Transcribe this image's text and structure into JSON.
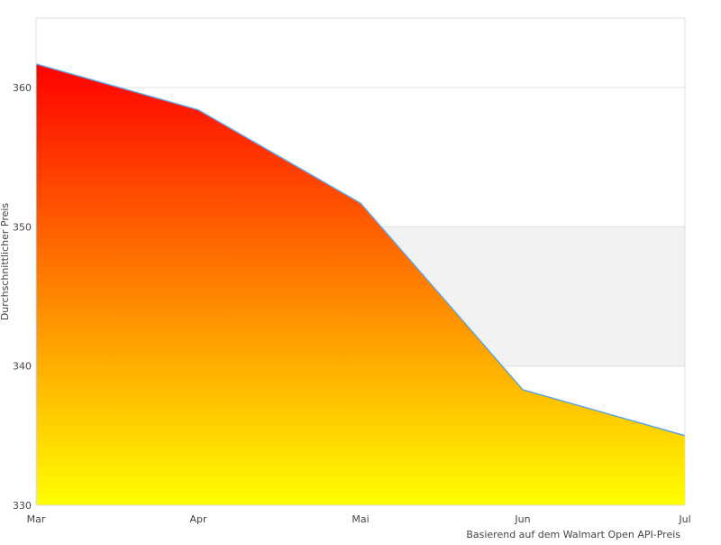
{
  "chart_data": {
    "type": "area",
    "title": "",
    "xlabel": "Basierend auf dem Walmart Open API-Preis",
    "ylabel": "Durchschnittlicher Preis",
    "categories": [
      "Mar",
      "Apr",
      "Mai",
      "Jun",
      "Jul"
    ],
    "values": [
      361.7,
      358.4,
      351.7,
      338.3,
      335.0
    ],
    "ylim": [
      330,
      365
    ],
    "yticks": [
      330,
      340,
      350,
      360
    ],
    "grid": true,
    "legend": "none",
    "colors": {
      "gradient_top": "#ff0000",
      "gradient_bottom": "#ffff00",
      "line": "#5ba4e6",
      "band": "#f2f2f2",
      "grid": "#e0e0e0"
    }
  }
}
